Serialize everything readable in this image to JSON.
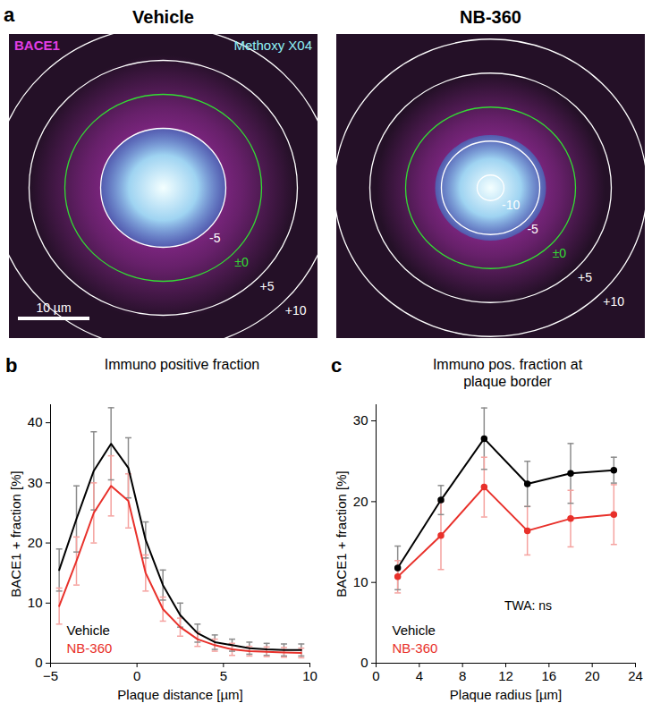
{
  "panel_a": {
    "label": "a",
    "channels": [
      {
        "name": "BACE1",
        "color": "#e23ee6"
      },
      {
        "name": "Methoxy X04",
        "color": "#8ff0f5"
      }
    ],
    "scale_bar": {
      "value": 10,
      "label": "10 µm"
    },
    "images": [
      {
        "title": "Vehicle",
        "contours": [
          {
            "value": -5,
            "label": "-5"
          },
          {
            "value": 0,
            "label": "±0",
            "color": "#33dd33"
          },
          {
            "value": 5,
            "label": "+5"
          },
          {
            "value": 10,
            "label": "+10"
          }
        ]
      },
      {
        "title": "NB-360",
        "contours": [
          {
            "value": -10,
            "label": "-10"
          },
          {
            "value": -5,
            "label": "-5"
          },
          {
            "value": 0,
            "label": "±0",
            "color": "#33dd33"
          },
          {
            "value": 5,
            "label": "+5"
          },
          {
            "value": 10,
            "label": "+10"
          }
        ]
      }
    ]
  },
  "chart_data": [
    {
      "label": "b",
      "type": "line",
      "title": "Immuno positive fraction",
      "x_label": "Plaque distance [µm]",
      "y_label": "BACE1 + fraction [%]",
      "x": [
        -4.5,
        -3.5,
        -2.5,
        -1.5,
        -0.5,
        0.5,
        1.5,
        2.5,
        3.5,
        4.5,
        5.5,
        6.5,
        7.5,
        8.5,
        9.5
      ],
      "xlim": [
        -5,
        10
      ],
      "xticks": [
        -5,
        0,
        5,
        10
      ],
      "ylim": [
        0,
        43
      ],
      "yticks": [
        0,
        10,
        20,
        30,
        40
      ],
      "legend": "bottom-left",
      "series": [
        {
          "name": "Vehicle",
          "color": "#000000",
          "values": [
            15.5,
            24,
            32,
            36.5,
            32.5,
            20.5,
            13,
            8,
            5,
            3.5,
            3,
            2.5,
            2.3,
            2.2,
            2.2
          ],
          "errors": [
            3.5,
            5.5,
            6.5,
            6,
            5,
            3,
            2.5,
            2,
            1.5,
            1.2,
            1,
            1,
            1,
            1,
            1
          ]
        },
        {
          "name": "NB-360",
          "color": "#e8302a",
          "values": [
            9.5,
            17,
            25,
            29.5,
            27,
            15,
            9,
            6,
            4,
            3,
            2.3,
            2,
            1.9,
            1.8,
            1.7
          ],
          "errors": [
            3,
            4,
            5,
            5,
            4.5,
            3,
            2,
            1.5,
            1.2,
            1,
            1,
            0.8,
            0.8,
            0.8,
            0.8
          ]
        }
      ]
    },
    {
      "label": "c",
      "type": "line",
      "title": "Immuno pos. fraction at plaque border",
      "x_label": "Plaque radius [µm]",
      "y_label": "BACE1 + fraction [%]",
      "x": [
        2,
        6,
        10,
        14,
        18,
        22
      ],
      "xlim": [
        0,
        24
      ],
      "xticks": [
        0,
        4,
        8,
        12,
        16,
        20,
        24
      ],
      "ylim": [
        0,
        32
      ],
      "yticks": [
        0,
        10,
        20,
        30
      ],
      "legend": "bottom-left",
      "annotations": [
        "TWA: ns"
      ],
      "series": [
        {
          "name": "Vehicle",
          "color": "#000000",
          "marker": "circle",
          "values": [
            11.8,
            20.2,
            27.8,
            22.2,
            23.5,
            23.9
          ],
          "errors": [
            2.7,
            1.8,
            3.8,
            2.8,
            3.7,
            1.6
          ]
        },
        {
          "name": "NB-360",
          "color": "#e8302a",
          "marker": "circle",
          "values": [
            10.7,
            15.8,
            21.8,
            16.4,
            17.9,
            18.4
          ],
          "errors": [
            2,
            4.2,
            3.7,
            3,
            3.5,
            3.7
          ]
        }
      ]
    }
  ]
}
